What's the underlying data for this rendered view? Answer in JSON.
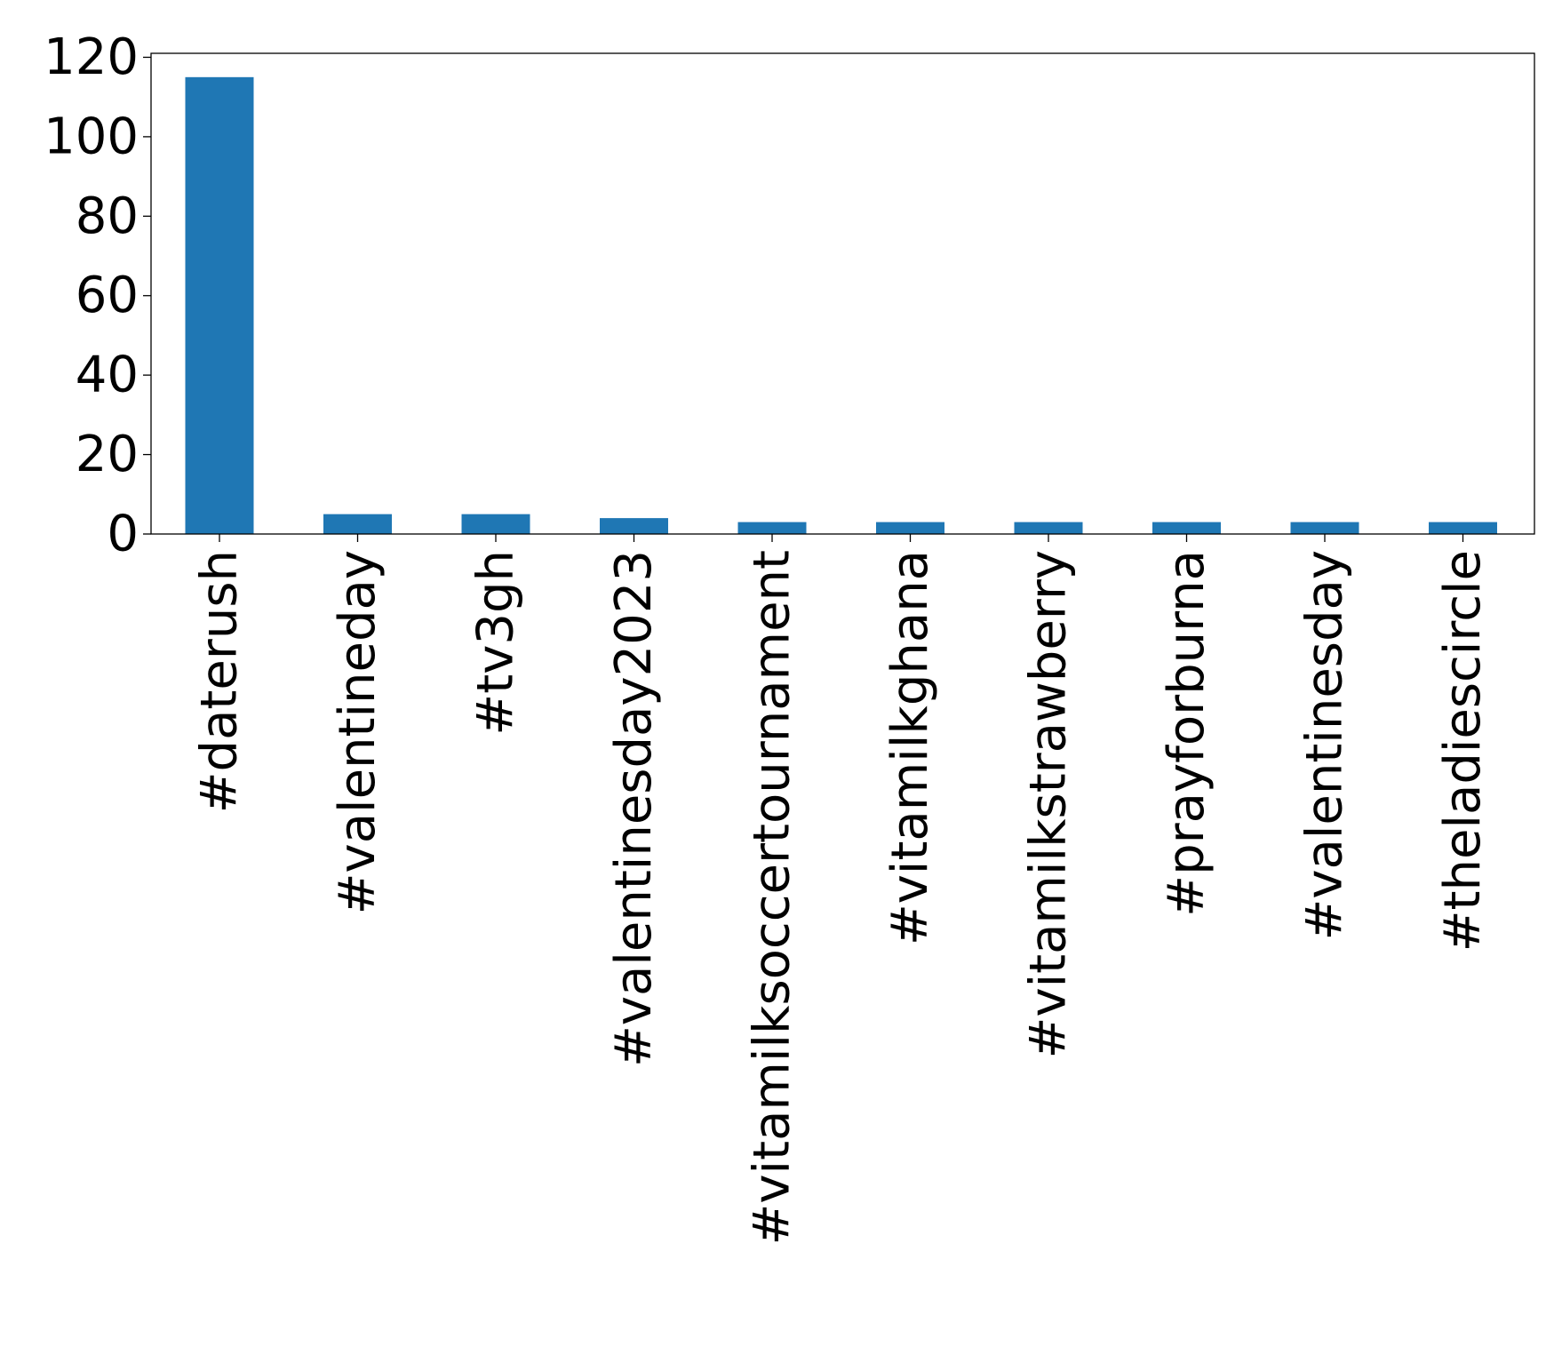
{
  "chart_data": {
    "type": "bar",
    "categories": [
      "#daterush",
      "#valentineday",
      "#tv3gh",
      "#valentinesday2023",
      "#vitamilksoccertournament",
      "#vitamilkghana",
      "#vitamilkstrawberry",
      "#prayforburna",
      "#valentinesday",
      "#theladiescircle"
    ],
    "values": [
      115,
      5,
      5,
      4,
      3,
      3,
      3,
      3,
      3,
      3
    ],
    "ylim": [
      0,
      121
    ],
    "yticks": [
      0,
      20,
      40,
      60,
      80,
      100,
      120
    ],
    "xlabel": "",
    "ylabel": "",
    "title": "",
    "bar_color": "#1f77b4",
    "grid": false,
    "legend": "none"
  }
}
